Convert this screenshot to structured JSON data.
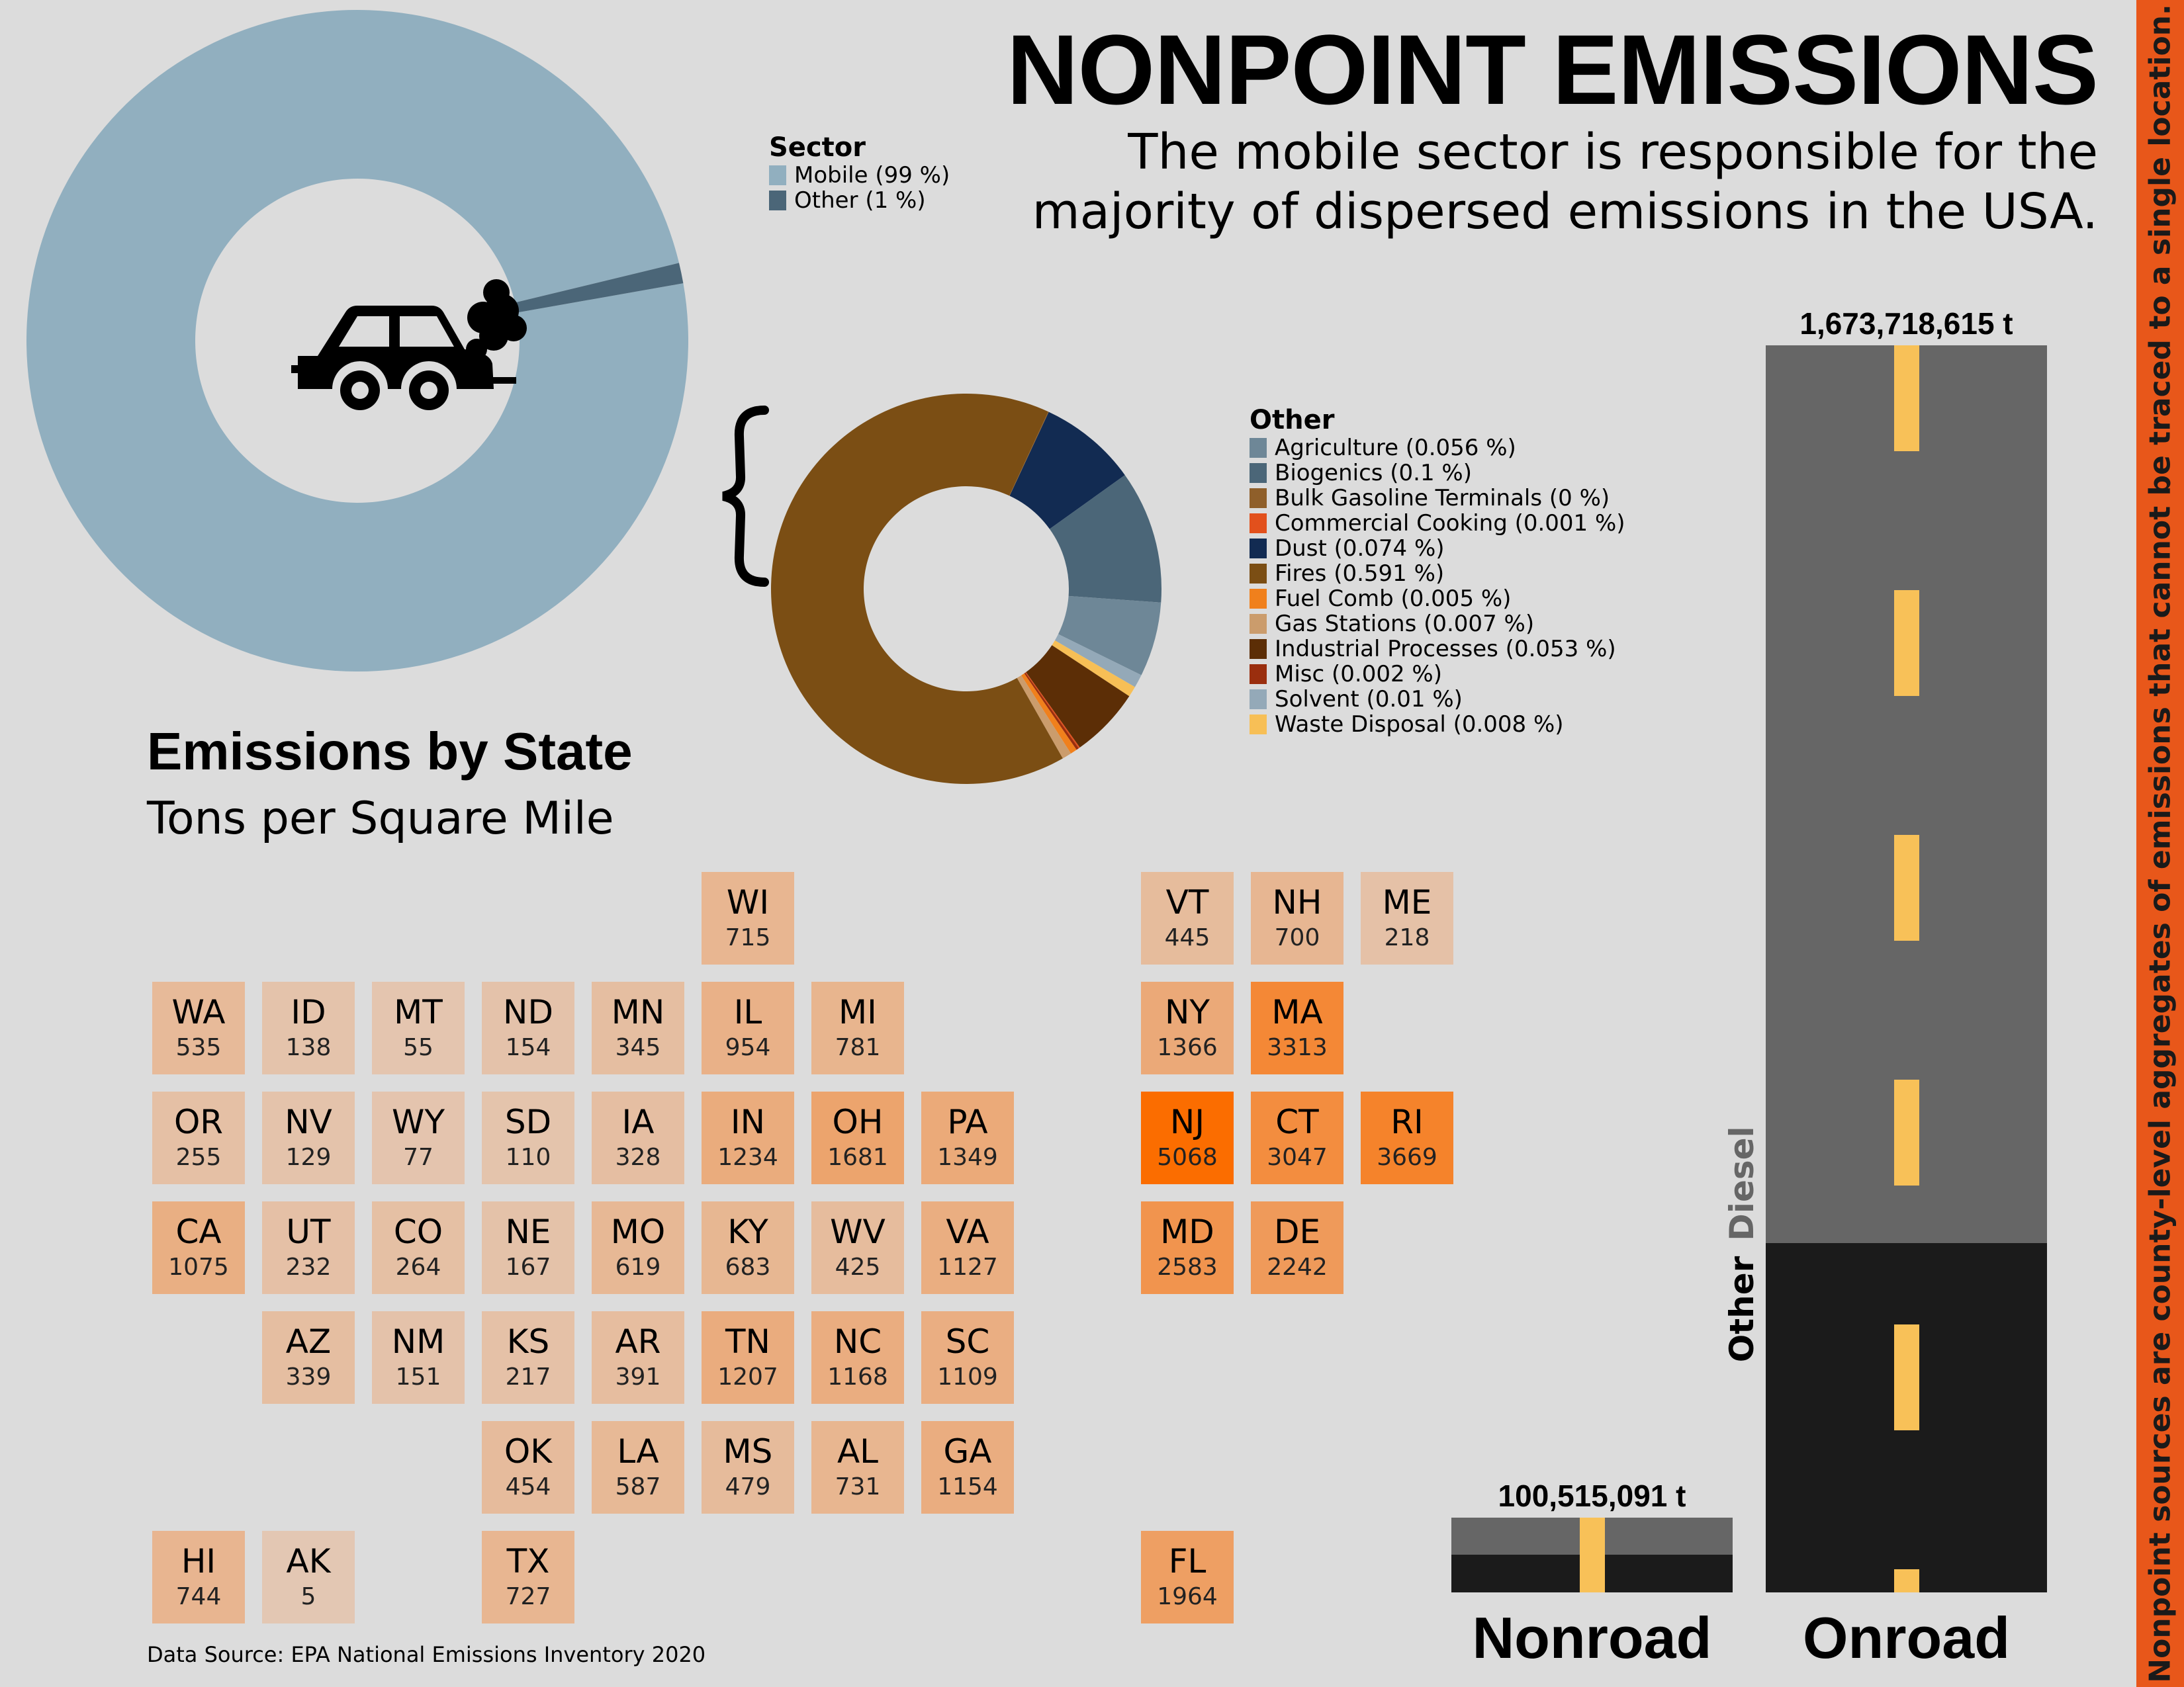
{
  "header": {
    "title": "NONPOINT EMISSIONS",
    "subtitle": "The mobile sector is responsible for the majority of dispersed emissions in the USA."
  },
  "side_note": "Nonpoint sources are county-level aggregates of emissions that cannot be traced to a single location.",
  "icons": {
    "car": "car-icon",
    "smoke": "exhaust-smoke-icon",
    "brace": "curly-brace-icon"
  },
  "chart_data": [
    {
      "type": "pie",
      "legend_title": "Sector",
      "slices": [
        {
          "label": "Mobile (99 %)",
          "value": 99,
          "color": "#91afbf"
        },
        {
          "label": "Other (1 %)",
          "value": 1,
          "color": "#4b6678"
        }
      ]
    },
    {
      "type": "pie",
      "legend_title": "Other",
      "slices": [
        {
          "label": "Agriculture (0.056 %)",
          "value": 0.056,
          "color": "#6e8797"
        },
        {
          "label": "Biogenics (0.1 %)",
          "value": 0.1,
          "color": "#4b6678"
        },
        {
          "label": "Bulk Gasoline Terminals (0 %)",
          "value": 0.0004,
          "color": "#8f5f2a"
        },
        {
          "label": "Commercial Cooking (0.001 %)",
          "value": 0.001,
          "color": "#e2501c"
        },
        {
          "label": "Dust (0.074 %)",
          "value": 0.074,
          "color": "#122b52"
        },
        {
          "label": "Fires (0.591 %)",
          "value": 0.591,
          "color": "#7b4e14"
        },
        {
          "label": "Fuel Comb (0.005 %)",
          "value": 0.005,
          "color": "#f0801c"
        },
        {
          "label": "Gas Stations (0.007 %)",
          "value": 0.007,
          "color": "#cb9c6c"
        },
        {
          "label": "Industrial Processes (0.053 %)",
          "value": 0.053,
          "color": "#5c2e06"
        },
        {
          "label": "Misc (0.002 %)",
          "value": 0.002,
          "color": "#9a2e0e"
        },
        {
          "label": "Solvent (0.01 %)",
          "value": 0.01,
          "color": "#94a9b8"
        },
        {
          "label": "Waste Disposal (0.008 %)",
          "value": 0.008,
          "color": "#f7bf56"
        }
      ]
    },
    {
      "type": "heatmap",
      "title": "Emissions by State",
      "subtitle": "Tons per Square Mile",
      "source": "Data Source: EPA National Emissions Inventory 2020",
      "states": [
        {
          "abbr": "WI",
          "value": 715,
          "row": 0,
          "col": 5
        },
        {
          "abbr": "VT",
          "value": 445,
          "row": 0,
          "col": 9
        },
        {
          "abbr": "NH",
          "value": 700,
          "row": 0,
          "col": 10
        },
        {
          "abbr": "ME",
          "value": 218,
          "row": 0,
          "col": 11
        },
        {
          "abbr": "WA",
          "value": 535,
          "row": 1,
          "col": 0
        },
        {
          "abbr": "ID",
          "value": 138,
          "row": 1,
          "col": 1
        },
        {
          "abbr": "MT",
          "value": 55,
          "row": 1,
          "col": 2
        },
        {
          "abbr": "ND",
          "value": 154,
          "row": 1,
          "col": 3
        },
        {
          "abbr": "MN",
          "value": 345,
          "row": 1,
          "col": 4
        },
        {
          "abbr": "IL",
          "value": 954,
          "row": 1,
          "col": 5
        },
        {
          "abbr": "MI",
          "value": 781,
          "row": 1,
          "col": 6
        },
        {
          "abbr": "NY",
          "value": 1366,
          "row": 1,
          "col": 9
        },
        {
          "abbr": "MA",
          "value": 3313,
          "row": 1,
          "col": 10
        },
        {
          "abbr": "OR",
          "value": 255,
          "row": 2,
          "col": 0
        },
        {
          "abbr": "NV",
          "value": 129,
          "row": 2,
          "col": 1
        },
        {
          "abbr": "WY",
          "value": 77,
          "row": 2,
          "col": 2
        },
        {
          "abbr": "SD",
          "value": 110,
          "row": 2,
          "col": 3
        },
        {
          "abbr": "IA",
          "value": 328,
          "row": 2,
          "col": 4
        },
        {
          "abbr": "IN",
          "value": 1234,
          "row": 2,
          "col": 5
        },
        {
          "abbr": "OH",
          "value": 1681,
          "row": 2,
          "col": 6
        },
        {
          "abbr": "PA",
          "value": 1349,
          "row": 2,
          "col": 7
        },
        {
          "abbr": "NJ",
          "value": 5068,
          "row": 2,
          "col": 9
        },
        {
          "abbr": "CT",
          "value": 3047,
          "row": 2,
          "col": 10
        },
        {
          "abbr": "RI",
          "value": 3669,
          "row": 2,
          "col": 11
        },
        {
          "abbr": "CA",
          "value": 1075,
          "row": 3,
          "col": 0
        },
        {
          "abbr": "UT",
          "value": 232,
          "row": 3,
          "col": 1
        },
        {
          "abbr": "CO",
          "value": 264,
          "row": 3,
          "col": 2
        },
        {
          "abbr": "NE",
          "value": 167,
          "row": 3,
          "col": 3
        },
        {
          "abbr": "MO",
          "value": 619,
          "row": 3,
          "col": 4
        },
        {
          "abbr": "KY",
          "value": 683,
          "row": 3,
          "col": 5
        },
        {
          "abbr": "WV",
          "value": 425,
          "row": 3,
          "col": 6
        },
        {
          "abbr": "VA",
          "value": 1127,
          "row": 3,
          "col": 7
        },
        {
          "abbr": "MD",
          "value": 2583,
          "row": 3,
          "col": 9
        },
        {
          "abbr": "DE",
          "value": 2242,
          "row": 3,
          "col": 10
        },
        {
          "abbr": "AZ",
          "value": 339,
          "row": 4,
          "col": 1
        },
        {
          "abbr": "NM",
          "value": 151,
          "row": 4,
          "col": 2
        },
        {
          "abbr": "KS",
          "value": 217,
          "row": 4,
          "col": 3
        },
        {
          "abbr": "AR",
          "value": 391,
          "row": 4,
          "col": 4
        },
        {
          "abbr": "TN",
          "value": 1207,
          "row": 4,
          "col": 5
        },
        {
          "abbr": "NC",
          "value": 1168,
          "row": 4,
          "col": 6
        },
        {
          "abbr": "SC",
          "value": 1109,
          "row": 4,
          "col": 7
        },
        {
          "abbr": "OK",
          "value": 454,
          "row": 5,
          "col": 3
        },
        {
          "abbr": "LA",
          "value": 587,
          "row": 5,
          "col": 4
        },
        {
          "abbr": "MS",
          "value": 479,
          "row": 5,
          "col": 5
        },
        {
          "abbr": "AL",
          "value": 731,
          "row": 5,
          "col": 6
        },
        {
          "abbr": "GA",
          "value": 1154,
          "row": 5,
          "col": 7
        },
        {
          "abbr": "HI",
          "value": 744,
          "row": 6,
          "col": 0
        },
        {
          "abbr": "AK",
          "value": 5,
          "row": 6,
          "col": 1
        },
        {
          "abbr": "TX",
          "value": 727,
          "row": 6,
          "col": 3
        },
        {
          "abbr": "FL",
          "value": 1964,
          "row": 6,
          "col": 9
        }
      ],
      "color_low": "#e3c7b3",
      "color_high": "#fb6d00"
    },
    {
      "type": "bar",
      "categories": [
        "Nonroad",
        "Onroad"
      ],
      "totals": [
        100515091,
        1673718615
      ],
      "total_labels": [
        "100,515,091 t",
        "1,673,718,615 t"
      ],
      "other_fraction": [
        0.5,
        0.28
      ],
      "stack_labels": {
        "other": "Other",
        "diesel": "Diesel"
      },
      "colors": {
        "other": "#1b1b1b",
        "diesel": "#666666",
        "lane": "#f8c158"
      }
    }
  ]
}
